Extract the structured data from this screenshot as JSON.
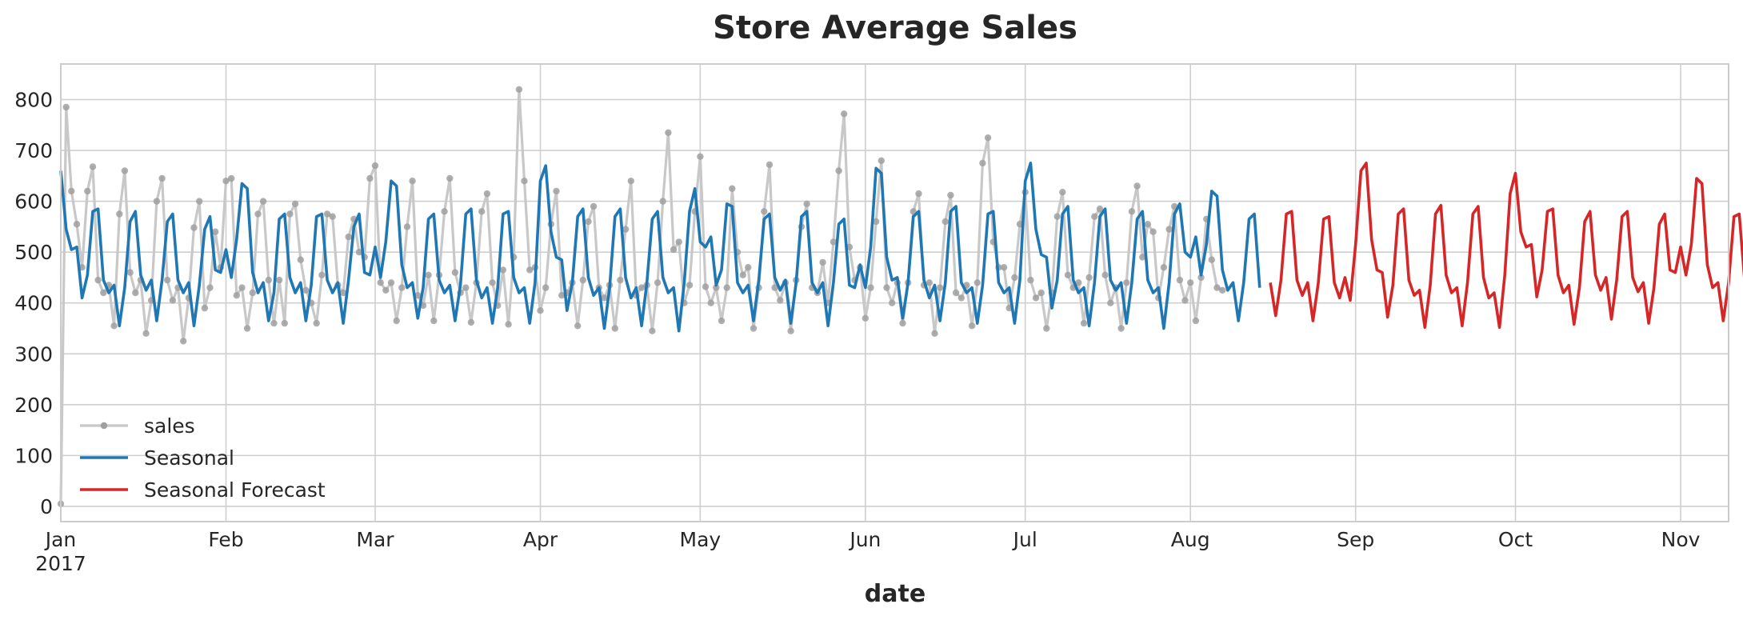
{
  "chart_data": {
    "type": "line",
    "title": "Store Average Sales",
    "xlabel": "date",
    "ylabel": "",
    "ylim": [
      -30,
      870
    ],
    "yticks": [
      0,
      100,
      200,
      300,
      400,
      500,
      600,
      700,
      800
    ],
    "xlim": [
      "2017-01-01",
      "2017-11-10"
    ],
    "xticks": [
      {
        "date": "2017-01-01",
        "label": "Jan",
        "sublabel": "2017"
      },
      {
        "date": "2017-02-01",
        "label": "Feb",
        "sublabel": ""
      },
      {
        "date": "2017-03-01",
        "label": "Mar",
        "sublabel": ""
      },
      {
        "date": "2017-04-01",
        "label": "Apr",
        "sublabel": ""
      },
      {
        "date": "2017-05-01",
        "label": "May",
        "sublabel": ""
      },
      {
        "date": "2017-06-01",
        "label": "Jun",
        "sublabel": ""
      },
      {
        "date": "2017-07-01",
        "label": "Jul",
        "sublabel": ""
      },
      {
        "date": "2017-08-01",
        "label": "Aug",
        "sublabel": ""
      },
      {
        "date": "2017-09-01",
        "label": "Sep",
        "sublabel": ""
      },
      {
        "date": "2017-10-01",
        "label": "Oct",
        "sublabel": ""
      },
      {
        "date": "2017-11-01",
        "label": "Nov",
        "sublabel": ""
      }
    ],
    "grid": true,
    "legend_position": "lower-left",
    "series": [
      {
        "name": "sales",
        "color": "#a0a0a0",
        "style": "line-with-dots",
        "start": "2017-01-01",
        "values": [
          5,
          785,
          620,
          555,
          470,
          620,
          668,
          445,
          420,
          435,
          355,
          575,
          660,
          460,
          420,
          445,
          340,
          405,
          600,
          645,
          445,
          405,
          430,
          325,
          410,
          548,
          600,
          390,
          430,
          540,
          470,
          640,
          645,
          415,
          430,
          350,
          420,
          575,
          600,
          445,
          360,
          445,
          360,
          575,
          595,
          485,
          425,
          400,
          360,
          455,
          575,
          570,
          435,
          420,
          530,
          565,
          500,
          490,
          645,
          670,
          440,
          425,
          440,
          365,
          430,
          550,
          640,
          415,
          395,
          455,
          365,
          455,
          580,
          645,
          460,
          420,
          430,
          362,
          440,
          580,
          615,
          440,
          395,
          465,
          358,
          490,
          820,
          640,
          465,
          470,
          385,
          430,
          555,
          620,
          415,
          420,
          440,
          355,
          445,
          560,
          590,
          430,
          410,
          435,
          350,
          445,
          545,
          640,
          415,
          430,
          435,
          345,
          440,
          600,
          735,
          505,
          520,
          400,
          435,
          580,
          688,
          432,
          400,
          430,
          365,
          430,
          625,
          500,
          455,
          470,
          350,
          430,
          580,
          672,
          430,
          405,
          440,
          345,
          445,
          550,
          595,
          430,
          420,
          480,
          400,
          520,
          660,
          772,
          510,
          445,
          470,
          370,
          430,
          560,
          680,
          430,
          400,
          440,
          360,
          440,
          580,
          615,
          435,
          440,
          340,
          430,
          560,
          612,
          420,
          410,
          435,
          355,
          440,
          675,
          725,
          520,
          470,
          470,
          390,
          450,
          555,
          618,
          445,
          410,
          420,
          350,
          420,
          570,
          618,
          455,
          430,
          440,
          360,
          450,
          570,
          585,
          455,
          400,
          430,
          350,
          440,
          580,
          630,
          490,
          555,
          540,
          410,
          470,
          545,
          590,
          445,
          405,
          440,
          365,
          450,
          565,
          485,
          430,
          425
        ]
      },
      {
        "name": "Seasonal",
        "color": "#1f77b4",
        "style": "line",
        "start": "2017-01-01",
        "values": [
          660,
          545,
          505,
          510,
          410,
          455,
          580,
          585,
          445,
          420,
          435,
          355,
          430,
          560,
          580,
          455,
          425,
          445,
          365,
          445,
          560,
          575,
          445,
          420,
          440,
          355,
          435,
          545,
          570,
          465,
          460,
          505,
          450,
          525,
          635,
          625,
          460,
          420,
          440,
          365,
          420,
          565,
          575,
          450,
          420,
          440,
          365,
          435,
          570,
          575,
          445,
          420,
          440,
          360,
          445,
          550,
          575,
          460,
          455,
          510,
          450,
          520,
          640,
          630,
          475,
          430,
          440,
          370,
          430,
          565,
          575,
          445,
          420,
          435,
          365,
          435,
          575,
          585,
          445,
          410,
          430,
          360,
          430,
          575,
          580,
          450,
          420,
          430,
          360,
          440,
          640,
          670,
          540,
          490,
          485,
          385,
          440,
          570,
          585,
          450,
          415,
          430,
          350,
          430,
          570,
          585,
          450,
          410,
          430,
          355,
          440,
          565,
          580,
          450,
          420,
          430,
          345,
          440,
          580,
          625,
          520,
          510,
          530,
          435,
          465,
          595,
          590,
          440,
          420,
          435,
          365,
          445,
          565,
          575,
          450,
          425,
          445,
          360,
          440,
          570,
          580,
          440,
          420,
          440,
          355,
          440,
          555,
          565,
          435,
          430,
          475,
          430,
          510,
          665,
          655,
          490,
          445,
          450,
          370,
          440,
          570,
          580,
          445,
          410,
          435,
          365,
          440,
          580,
          590,
          440,
          420,
          430,
          360,
          435,
          575,
          580,
          440,
          420,
          430,
          360,
          445,
          640,
          675,
          545,
          495,
          490,
          390,
          445,
          575,
          590,
          445,
          420,
          430,
          355,
          440,
          570,
          585,
          445,
          425,
          440,
          360,
          440,
          565,
          580,
          445,
          420,
          430,
          350,
          440,
          575,
          595,
          500,
          490,
          530,
          455,
          515,
          620,
          610,
          465,
          425,
          440,
          365,
          440,
          565,
          575,
          430
        ]
      },
      {
        "name": "Seasonal Forecast",
        "color": "#d62728",
        "style": "line",
        "start": "2017-08-16",
        "values": [
          440,
          375,
          445,
          575,
          580,
          445,
          415,
          440,
          365,
          440,
          565,
          570,
          440,
          410,
          450,
          405,
          515,
          660,
          675,
          525,
          465,
          460,
          372,
          435,
          575,
          585,
          445,
          415,
          425,
          352,
          435,
          575,
          592,
          455,
          420,
          430,
          355,
          440,
          575,
          590,
          450,
          410,
          420,
          352,
          455,
          615,
          655,
          540,
          510,
          515,
          412,
          465,
          580,
          585,
          455,
          420,
          435,
          358,
          430,
          560,
          580,
          455,
          425,
          450,
          368,
          445,
          570,
          580,
          450,
          422,
          440,
          360,
          430,
          555,
          575,
          465,
          460,
          510,
          455,
          515,
          645,
          635,
          475,
          430,
          440,
          365,
          440,
          570,
          575,
          445
        ]
      }
    ]
  }
}
